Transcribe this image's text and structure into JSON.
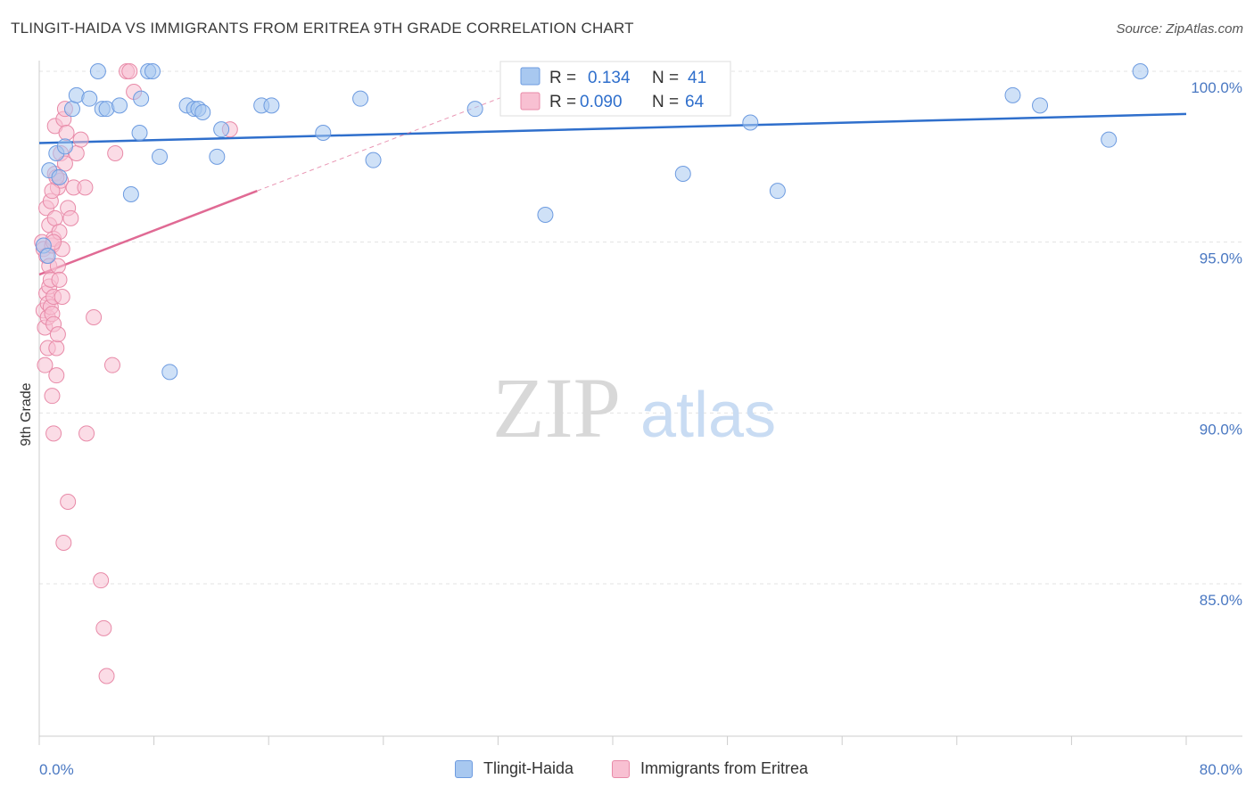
{
  "title": "TLINGIT-HAIDA VS IMMIGRANTS FROM ERITREA 9TH GRADE CORRELATION CHART",
  "source": "Source: ZipAtlas.com",
  "watermark": {
    "zip": "ZIP",
    "atlas": "atlas"
  },
  "legend_box": {
    "rows": [
      {
        "r_label": "R =",
        "r_value": "0.134",
        "n_label": "N =",
        "n_value": "41"
      },
      {
        "r_label": "R =",
        "r_value": "0.090",
        "n_label": "N =",
        "n_value": "64"
      }
    ]
  },
  "bottom_legend": [
    {
      "label": "Tlingit-Haida",
      "color": "#a8c8f0",
      "border": "#6d9be0"
    },
    {
      "label": "Immigrants from Eritrea",
      "color": "#f8c0d2",
      "border": "#e88aa8"
    }
  ],
  "chart_data": {
    "type": "scatter",
    "title": "TLINGIT-HAIDA VS IMMIGRANTS FROM ERITREA 9TH GRADE CORRELATION CHART",
    "xlabel": "",
    "ylabel": "9th Grade",
    "xlim": [
      0,
      80
    ],
    "ylim": [
      80.5,
      100.8
    ],
    "x_tick_labels": [
      "0.0%",
      "80.0%"
    ],
    "y_ticks": [
      85,
      90,
      95,
      100
    ],
    "y_tick_labels": [
      "85.0%",
      "90.0%",
      "95.0%",
      "100.0%"
    ],
    "grid": true,
    "series": [
      {
        "name": "Tlingit-Haida",
        "color": "#6d9be0",
        "fill": "#a8c8f0",
        "line_color": "#2f6fcc",
        "r": "0.134",
        "n": "41",
        "trend": {
          "x": [
            0,
            80
          ],
          "y": [
            97.9,
            98.75
          ]
        },
        "points": [
          [
            0.3,
            94.9
          ],
          [
            0.6,
            94.6
          ],
          [
            0.7,
            97.1
          ],
          [
            1.2,
            97.6
          ],
          [
            1.4,
            96.9
          ],
          [
            1.8,
            97.8
          ],
          [
            2.3,
            98.9
          ],
          [
            2.6,
            99.3
          ],
          [
            3.5,
            99.2
          ],
          [
            4.1,
            100.0
          ],
          [
            4.4,
            98.9
          ],
          [
            4.7,
            98.9
          ],
          [
            5.6,
            99.0
          ],
          [
            6.4,
            96.4
          ],
          [
            7.0,
            98.2
          ],
          [
            7.1,
            99.2
          ],
          [
            7.6,
            100.0
          ],
          [
            7.9,
            100.0
          ],
          [
            8.4,
            97.5
          ],
          [
            9.1,
            91.2
          ],
          [
            10.3,
            99.0
          ],
          [
            10.8,
            98.9
          ],
          [
            11.1,
            98.9
          ],
          [
            11.4,
            98.8
          ],
          [
            12.4,
            97.5
          ],
          [
            12.7,
            98.3
          ],
          [
            15.5,
            99.0
          ],
          [
            16.2,
            99.0
          ],
          [
            19.8,
            98.2
          ],
          [
            22.4,
            99.2
          ],
          [
            23.3,
            97.4
          ],
          [
            30.4,
            98.9
          ],
          [
            35.3,
            95.8
          ],
          [
            36.8,
            100.0
          ],
          [
            44.9,
            97.0
          ],
          [
            49.6,
            98.5
          ],
          [
            51.5,
            96.5
          ],
          [
            67.9,
            99.3
          ],
          [
            69.8,
            99.0
          ],
          [
            74.6,
            98.0
          ],
          [
            76.8,
            100.0
          ]
        ]
      },
      {
        "name": "Immigrants from Eritrea",
        "color": "#e88aa8",
        "fill": "#f8c0d2",
        "line_color": "#e06a94",
        "r": "0.090",
        "n": "64",
        "trend": {
          "x": [
            0,
            15.2
          ],
          "y": [
            94.05,
            96.5
          ]
        },
        "trend_dashed": {
          "x": [
            15.2,
            37.0
          ],
          "y": [
            96.5,
            100.0
          ]
        },
        "points": [
          [
            0.2,
            95.0
          ],
          [
            0.3,
            94.8
          ],
          [
            0.3,
            93.0
          ],
          [
            0.4,
            92.5
          ],
          [
            0.4,
            91.4
          ],
          [
            0.5,
            96.0
          ],
          [
            0.5,
            94.6
          ],
          [
            0.5,
            93.5
          ],
          [
            0.6,
            93.2
          ],
          [
            0.6,
            92.8
          ],
          [
            0.6,
            91.9
          ],
          [
            0.7,
            95.5
          ],
          [
            0.7,
            94.3
          ],
          [
            0.7,
            93.7
          ],
          [
            0.8,
            96.2
          ],
          [
            0.8,
            93.9
          ],
          [
            0.8,
            93.1
          ],
          [
            0.9,
            94.9
          ],
          [
            0.9,
            92.9
          ],
          [
            0.9,
            90.5
          ],
          [
            1.0,
            95.1
          ],
          [
            1.0,
            93.4
          ],
          [
            1.0,
            92.6
          ],
          [
            1.0,
            89.4
          ],
          [
            1.1,
            97.0
          ],
          [
            1.1,
            98.4
          ],
          [
            1.1,
            95.7
          ],
          [
            1.2,
            91.9
          ],
          [
            1.2,
            91.1
          ],
          [
            1.3,
            94.3
          ],
          [
            1.3,
            92.3
          ],
          [
            1.3,
            96.6
          ],
          [
            1.4,
            95.3
          ],
          [
            1.5,
            96.8
          ],
          [
            1.5,
            97.6
          ],
          [
            1.6,
            94.8
          ],
          [
            1.6,
            93.4
          ],
          [
            1.7,
            98.6
          ],
          [
            1.7,
            86.2
          ],
          [
            1.8,
            98.9
          ],
          [
            1.8,
            97.3
          ],
          [
            1.9,
            98.2
          ],
          [
            2.0,
            96.0
          ],
          [
            2.0,
            87.4
          ],
          [
            2.2,
            95.7
          ],
          [
            2.4,
            96.6
          ],
          [
            2.6,
            97.6
          ],
          [
            2.9,
            98.0
          ],
          [
            3.2,
            96.6
          ],
          [
            3.3,
            89.4
          ],
          [
            3.8,
            92.8
          ],
          [
            4.3,
            85.1
          ],
          [
            4.5,
            83.7
          ],
          [
            4.7,
            82.3
          ],
          [
            5.1,
            91.4
          ],
          [
            5.3,
            97.6
          ],
          [
            6.1,
            100.0
          ],
          [
            6.3,
            100.0
          ],
          [
            6.6,
            99.4
          ],
          [
            13.3,
            98.3
          ],
          [
            0.9,
            96.5
          ],
          [
            1.4,
            93.9
          ],
          [
            1.2,
            96.9
          ],
          [
            1.0,
            95.0
          ]
        ]
      }
    ]
  }
}
